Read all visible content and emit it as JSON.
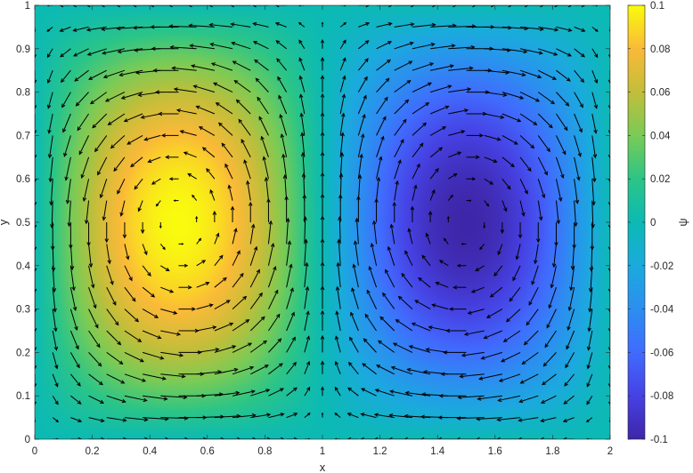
{
  "chart_data": {
    "type": "heatmap",
    "subtype": "stream-function-with-quiver",
    "xlabel": "x",
    "ylabel": "y",
    "colorbar_label": "ψ",
    "xlim": [
      0,
      2
    ],
    "ylim": [
      0,
      1
    ],
    "clim": [
      -0.1,
      0.1
    ],
    "colormap": "parula",
    "field": {
      "formula": "psi = 0.1 * sin(pi*x) * sin(pi*y)",
      "amplitude": 0.1
    },
    "extrema": [
      {
        "x": 0.5,
        "y": 0.5,
        "psi": 0.1
      },
      {
        "x": 1.5,
        "y": 0.5,
        "psi": -0.1
      }
    ],
    "quiver": {
      "nx": 33,
      "ny": 21,
      "color": "#000000"
    },
    "x_ticks": [
      "0",
      "0.2",
      "0.4",
      "0.6",
      "0.8",
      "1",
      "1.2",
      "1.4",
      "1.6",
      "1.8",
      "2"
    ],
    "x_tick_values": [
      0,
      0.2,
      0.4,
      0.6,
      0.8,
      1,
      1.2,
      1.4,
      1.6,
      1.8,
      2
    ],
    "y_ticks": [
      "0",
      "0.1",
      "0.2",
      "0.3",
      "0.4",
      "0.5",
      "0.6",
      "0.7",
      "0.8",
      "0.9",
      "1"
    ],
    "y_tick_values": [
      0,
      0.1,
      0.2,
      0.3,
      0.4,
      0.5,
      0.6,
      0.7,
      0.8,
      0.9,
      1
    ],
    "colorbar_ticks": [
      "0.1",
      "0.08",
      "0.06",
      "0.04",
      "0.02",
      "0",
      "-0.02",
      "-0.04",
      "-0.06",
      "-0.08",
      "-0.1"
    ],
    "colorbar_tick_values": [
      0.1,
      0.08,
      0.06,
      0.04,
      0.02,
      0,
      -0.02,
      -0.04,
      -0.06,
      -0.08,
      -0.1
    ]
  }
}
